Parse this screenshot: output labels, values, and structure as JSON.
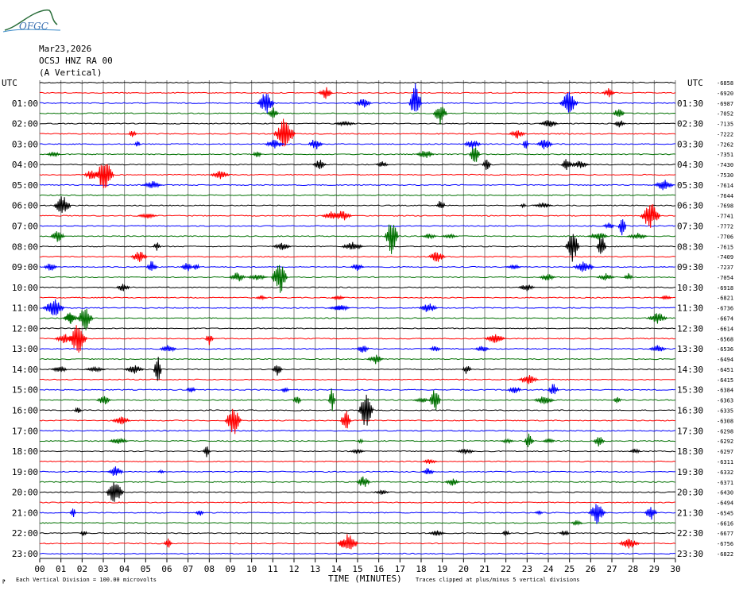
{
  "header": {
    "logo_text": "OFGC",
    "date": "Mar23,2026",
    "station": "OCSJ HNZ RA 00",
    "component": "(A Vertical)"
  },
  "left_axis_title": "UTC",
  "right_axis_title": "UTC",
  "x_axis_label": "TIME (MINUTES)",
  "footer": {
    "scale_note": "Each Vertical Division =  100.00 microvolts",
    "clip_note": "Traces clipped at plus/minus 5 vertical divisions"
  },
  "colors": {
    "trace_cycle": [
      "#000000",
      "#ff0000",
      "#0000ff",
      "#007000"
    ],
    "grid": "#7f7f7f",
    "logo": "#2a6e3a"
  },
  "chart_data": {
    "type": "seismogram",
    "x_range": [
      0,
      30
    ],
    "x_ticks": [
      "00",
      "01",
      "02",
      "03",
      "04",
      "05",
      "06",
      "07",
      "08",
      "09",
      "10",
      "11",
      "12",
      "13",
      "14",
      "15",
      "16",
      "17",
      "18",
      "19",
      "20",
      "21",
      "22",
      "23",
      "24",
      "25",
      "26",
      "27",
      "28",
      "29",
      "30"
    ],
    "trace_minutes": 30,
    "left_hour_labels": [
      "UTC",
      "01:00",
      "02:00",
      "03:00",
      "04:00",
      "05:00",
      "06:00",
      "07:00",
      "08:00",
      "09:00",
      "10:00",
      "11:00",
      "12:00",
      "13:00",
      "14:00",
      "15:00",
      "16:00",
      "17:00",
      "18:00",
      "19:00",
      "20:00",
      "21:00",
      "22:00",
      "23:00"
    ],
    "right_half_hour_labels": [
      "UTC",
      "01:30",
      "02:30",
      "03:30",
      "04:30",
      "05:30",
      "06:30",
      "07:30",
      "08:30",
      "09:30",
      "10:30",
      "11:30",
      "12:30",
      "13:30",
      "14:30",
      "15:30",
      "16:30",
      "17:30",
      "18:30",
      "19:30",
      "20:30",
      "21:30",
      "22:30",
      "23:30"
    ],
    "trace_offsets": [
      "-6858",
      "-6920",
      "-6987",
      "-7052",
      "-7135",
      "-7222",
      "-7262",
      "-7351",
      "-7430",
      "-7530",
      "-7614",
      "-7644",
      "-7698",
      "-7741",
      "-7772",
      "-7706",
      "-7615",
      "-7409",
      "-7237",
      "-7054",
      "-6918",
      "-6821",
      "-6736",
      "-6674",
      "-6614",
      "-6568",
      "-6536",
      "-6494",
      "-6451",
      "-6415",
      "-6384",
      "-6363",
      "-6335",
      "-6308",
      "-6298",
      "-6292",
      "-6297",
      "-6311",
      "-6332",
      "-6371",
      "-6430",
      "-6494",
      "-6545",
      "-6616",
      "-6677",
      "-6756",
      "-6822"
    ]
  }
}
